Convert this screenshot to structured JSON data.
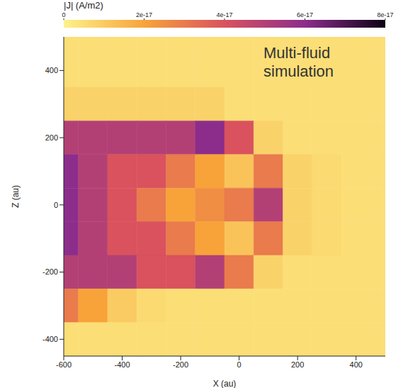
{
  "chart_data": {
    "type": "heatmap",
    "title": "|J| (A/m2)",
    "annotation": "Multi-fluid simulation",
    "x_label": "X (au)",
    "y_label": "Z (au)",
    "xlim": [
      -600,
      500
    ],
    "ylim": [
      -450,
      500
    ],
    "xticks": [
      -600,
      -400,
      -200,
      0,
      200,
      400
    ],
    "yticks": [
      -400,
      -200,
      0,
      200,
      400
    ],
    "x_edges": [
      -600,
      -550,
      -450,
      -350,
      -250,
      -150,
      -50,
      50,
      150,
      250,
      350,
      450,
      500
    ],
    "y_edges": [
      500,
      450,
      350,
      250,
      150,
      50,
      -50,
      -150,
      -250,
      -350,
      -450
    ],
    "cells": [
      [
        5e-18,
        5e-18,
        5e-18,
        5e-18,
        5e-18,
        5e-18,
        5e-18,
        5e-18,
        5e-18,
        5e-18,
        5e-18,
        5e-18
      ],
      [
        5e-18,
        5e-18,
        5e-18,
        5e-18,
        5e-18,
        5e-18,
        5e-18,
        5e-18,
        5e-18,
        5e-18,
        5e-18,
        5e-18
      ],
      [
        8e-18,
        8e-18,
        8e-18,
        8e-18,
        8e-18,
        8e-18,
        5e-18,
        5e-18,
        5e-18,
        5e-18,
        5e-18,
        5e-18
      ],
      [
        5e-17,
        5e-17,
        5e-17,
        5e-17,
        5e-17,
        6e-17,
        4e-17,
        8e-18,
        5e-18,
        5e-18,
        5e-18,
        5e-18
      ],
      [
        6e-17,
        5e-17,
        4e-17,
        4e-17,
        3e-17,
        2e-17,
        1.2e-17,
        3e-17,
        8e-18,
        6e-18,
        5e-18,
        5e-18
      ],
      [
        6e-17,
        5e-17,
        4e-17,
        3e-17,
        2e-17,
        2.5e-17,
        3e-17,
        5e-17,
        8e-18,
        6e-18,
        5e-18,
        5e-18
      ],
      [
        6e-17,
        5e-17,
        4e-17,
        4e-17,
        3e-17,
        2e-17,
        1.2e-17,
        3e-17,
        8e-18,
        6e-18,
        5e-18,
        5e-18
      ],
      [
        5e-17,
        5e-17,
        5e-17,
        4e-17,
        4e-17,
        5e-17,
        3e-17,
        8e-18,
        5e-18,
        5e-18,
        5e-18,
        5e-18
      ],
      [
        3e-17,
        2e-17,
        1e-17,
        6e-18,
        5e-18,
        5e-18,
        5e-18,
        5e-18,
        5e-18,
        5e-18,
        5e-18,
        5e-18
      ],
      [
        5e-18,
        5e-18,
        5e-18,
        5e-18,
        5e-18,
        5e-18,
        5e-18,
        5e-18,
        5e-18,
        5e-18,
        5e-18,
        5e-18
      ]
    ],
    "colorbar": {
      "range": [
        0,
        8e-17
      ],
      "ticks": [
        0,
        {
          "value": 2e-17,
          "label": "2e-17"
        },
        {
          "value": 4e-17,
          "label": "4e-17"
        },
        {
          "value": 6e-17,
          "label": "6e-17"
        },
        {
          "value": 8e-17,
          "label": "8e-17"
        }
      ]
    }
  }
}
